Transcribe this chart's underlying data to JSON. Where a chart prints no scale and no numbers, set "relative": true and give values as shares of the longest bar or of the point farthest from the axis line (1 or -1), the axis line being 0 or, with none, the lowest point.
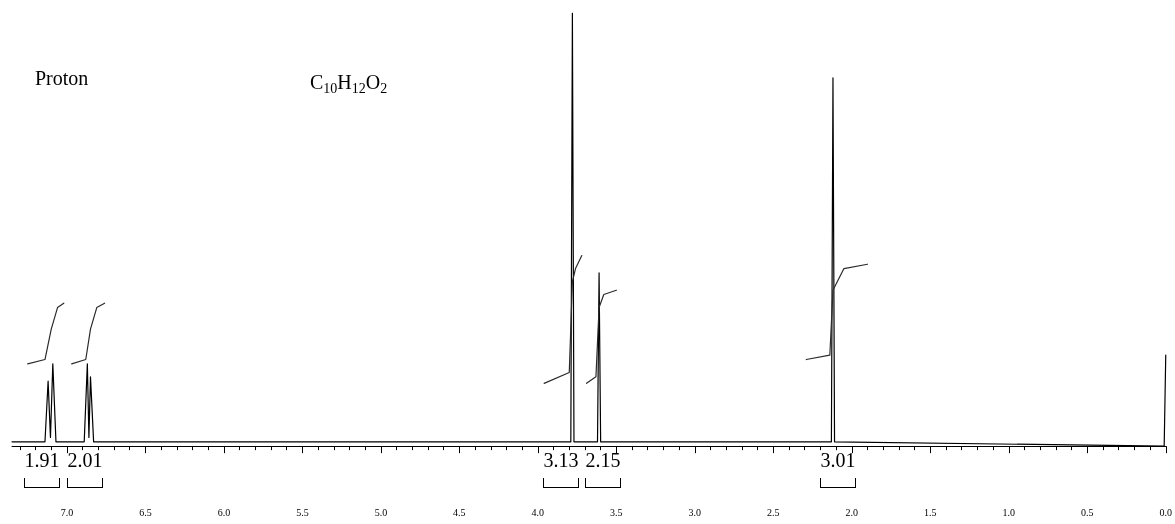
{
  "chart_data": {
    "type": "line",
    "relative": true,
    "xlim": [
      7.35,
      0
    ],
    "xticks": [
      {
        "value": 7,
        "label": "7.0"
      },
      {
        "value": 6.5,
        "label": "6.5"
      },
      {
        "value": 6,
        "label": "6.0"
      },
      {
        "value": 5.5,
        "label": "5.5"
      },
      {
        "value": 5,
        "label": "5.0"
      },
      {
        "value": 4.5,
        "label": "4.5"
      },
      {
        "value": 4,
        "label": "4.0"
      },
      {
        "value": 3.5,
        "label": "3.5"
      },
      {
        "value": 3,
        "label": "3.0"
      },
      {
        "value": 2.5,
        "label": "2.5"
      },
      {
        "value": 2,
        "label": "2.0"
      },
      {
        "value": 1.5,
        "label": "1.5"
      },
      {
        "value": 1,
        "label": "1.0"
      },
      {
        "value": 0.5,
        "label": "0.5"
      },
      {
        "value": 0,
        "label": "0.0"
      }
    ],
    "grid": false,
    "marker": "none",
    "line_style": "solid",
    "series": [
      {
        "color": "#000000",
        "x": [
          7.35,
          7.14,
          7.12,
          7.105,
          7.09,
          7.07,
          6.89,
          6.87,
          6.86,
          6.85,
          6.83,
          3.79,
          3.78,
          3.77,
          3.62,
          3.61,
          3.6,
          2.13,
          2.12,
          2.11,
          0.01,
          0.0
        ],
        "values": [
          0.01,
          0.01,
          0.15,
          0.02,
          0.19,
          0.01,
          0.01,
          0.19,
          0.02,
          0.16,
          0.01,
          0.01,
          1.0,
          0.01,
          0.01,
          0.4,
          0.01,
          0.01,
          0.85,
          0.01,
          0.0,
          0.21
        ]
      },
      {
        "color": "#2b2b2b",
        "x": [
          7.25,
          7.14,
          7.1,
          7.06,
          7.02
        ],
        "values": [
          0.19,
          0.2,
          0.27,
          0.32,
          0.33
        ]
      },
      {
        "color": "#2b2b2b",
        "x": [
          6.97,
          6.88,
          6.85,
          6.81,
          6.76
        ],
        "values": [
          0.19,
          0.2,
          0.27,
          0.32,
          0.33
        ]
      },
      {
        "color": "#2b2b2b",
        "x": [
          3.96,
          3.8,
          3.78,
          3.76,
          3.72
        ],
        "values": [
          0.145,
          0.17,
          0.38,
          0.41,
          0.44
        ]
      },
      {
        "color": "#2b2b2b",
        "x": [
          3.69,
          3.63,
          3.61,
          3.58,
          3.5
        ],
        "values": [
          0.145,
          0.16,
          0.32,
          0.35,
          0.36
        ]
      },
      {
        "color": "#2b2b2b",
        "x": [
          2.29,
          2.14,
          2.12,
          2.05,
          1.9
        ],
        "values": [
          0.2,
          0.21,
          0.36,
          0.41,
          0.42
        ]
      }
    ],
    "annotations": [
      "Proton",
      "C$_{10}$H$_{12}$O$_{2}$",
      "1.91",
      "2.01",
      "3.13",
      "2.15",
      "3.01"
    ]
  }
}
